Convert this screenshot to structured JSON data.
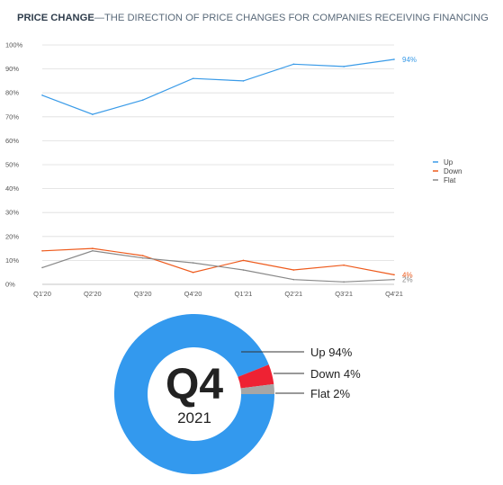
{
  "header": {
    "title_bold": "PRICE CHANGE",
    "title_rest": "—THE DIRECTION OF PRICE CHANGES FOR COMPANIES RECEIVING FINANCING"
  },
  "chart_data": [
    {
      "type": "line",
      "categories": [
        "Q1'20",
        "Q2'20",
        "Q3'20",
        "Q4'20",
        "Q1'21",
        "Q2'21",
        "Q3'21",
        "Q4'21"
      ],
      "ylim": [
        0,
        100
      ],
      "yticks": [
        "0%",
        "10%",
        "20%",
        "30%",
        "40%",
        "50%",
        "60%",
        "70%",
        "80%",
        "90%",
        "100%"
      ],
      "grid": true,
      "legend": "right",
      "series": [
        {
          "name": "Up",
          "color": "#3a9be8",
          "values": [
            79,
            71,
            77,
            86,
            85,
            92,
            91,
            94
          ],
          "end_label": "94%"
        },
        {
          "name": "Down",
          "color": "#ee5a1c",
          "values": [
            14,
            15,
            12,
            5,
            10,
            6,
            8,
            4
          ],
          "end_label": "4%"
        },
        {
          "name": "Flat",
          "color": "#888888",
          "values": [
            7,
            14,
            11,
            9,
            6,
            2,
            1,
            2
          ],
          "end_label": "2%"
        }
      ]
    },
    {
      "type": "pie",
      "center_label": "Q4",
      "center_sublabel": "2021",
      "slices": [
        {
          "label": "Up 94%",
          "value": 94,
          "color": "#3399ee"
        },
        {
          "label": "Down 4%",
          "value": 4,
          "color": "#ee2233"
        },
        {
          "label": "Flat 2%",
          "value": 2,
          "color": "#a6a6a6"
        }
      ]
    }
  ]
}
